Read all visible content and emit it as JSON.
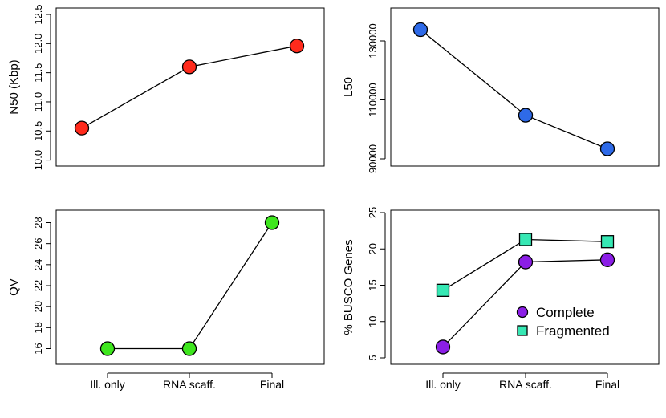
{
  "chart_data": [
    {
      "type": "line",
      "id": "n50",
      "categories": [
        "Ill. only",
        "RNA scaff.",
        "Final"
      ],
      "ylabel": "N50 (Kbp)",
      "ylim": [
        10.0,
        12.5
      ],
      "yticks": [
        10.0,
        10.5,
        11.0,
        11.5,
        12.0,
        12.5
      ],
      "ytick_labels": [
        "10.0",
        "10.5",
        "11.0",
        "11.5",
        "12.0",
        "12.5"
      ],
      "show_x_axis": false,
      "series": [
        {
          "name": "N50",
          "values": [
            10.55,
            11.6,
            11.96
          ],
          "color": "#ff2a1c",
          "marker": "circle"
        }
      ]
    },
    {
      "type": "line",
      "id": "l50",
      "categories": [
        "Ill. only",
        "RNA scaff.",
        "Final"
      ],
      "ylabel": "L50",
      "ylim": [
        90000,
        130000
      ],
      "yticks": [
        90000,
        110000,
        130000
      ],
      "ytick_labels": [
        "90000",
        "110000",
        "130000"
      ],
      "show_x_axis": false,
      "series": [
        {
          "name": "L50",
          "values": [
            133800,
            104800,
            93400
          ],
          "color": "#2e6ae8",
          "marker": "circle"
        }
      ]
    },
    {
      "type": "line",
      "id": "qv",
      "categories": [
        "Ill. only",
        "RNA scaff.",
        "Final"
      ],
      "ylabel": "QV",
      "ylim": [
        16,
        28
      ],
      "yticks": [
        16,
        18,
        20,
        22,
        24,
        26,
        28
      ],
      "ytick_labels": [
        "16",
        "18",
        "20",
        "22",
        "24",
        "26",
        "28"
      ],
      "show_x_axis": true,
      "series": [
        {
          "name": "QV",
          "values": [
            16.0,
            16.0,
            28.0
          ],
          "color": "#3ee61e",
          "marker": "circle"
        }
      ]
    },
    {
      "type": "line",
      "id": "busco",
      "categories": [
        "Ill. only",
        "RNA scaff.",
        "Final"
      ],
      "ylabel": "% BUSCO Genes",
      "ylim": [
        5,
        25
      ],
      "yticks": [
        5,
        10,
        15,
        20,
        25
      ],
      "ytick_labels": [
        "5",
        "10",
        "15",
        "20",
        "25"
      ],
      "show_x_axis": true,
      "legend": "bottom-right",
      "series": [
        {
          "name": "Complete",
          "values": [
            6.5,
            18.2,
            18.5
          ],
          "color": "#8b1ee6",
          "marker": "circle"
        },
        {
          "name": "Fragmented",
          "values": [
            14.3,
            21.3,
            21.0
          ],
          "color": "#36e8b4",
          "marker": "square"
        }
      ]
    }
  ]
}
